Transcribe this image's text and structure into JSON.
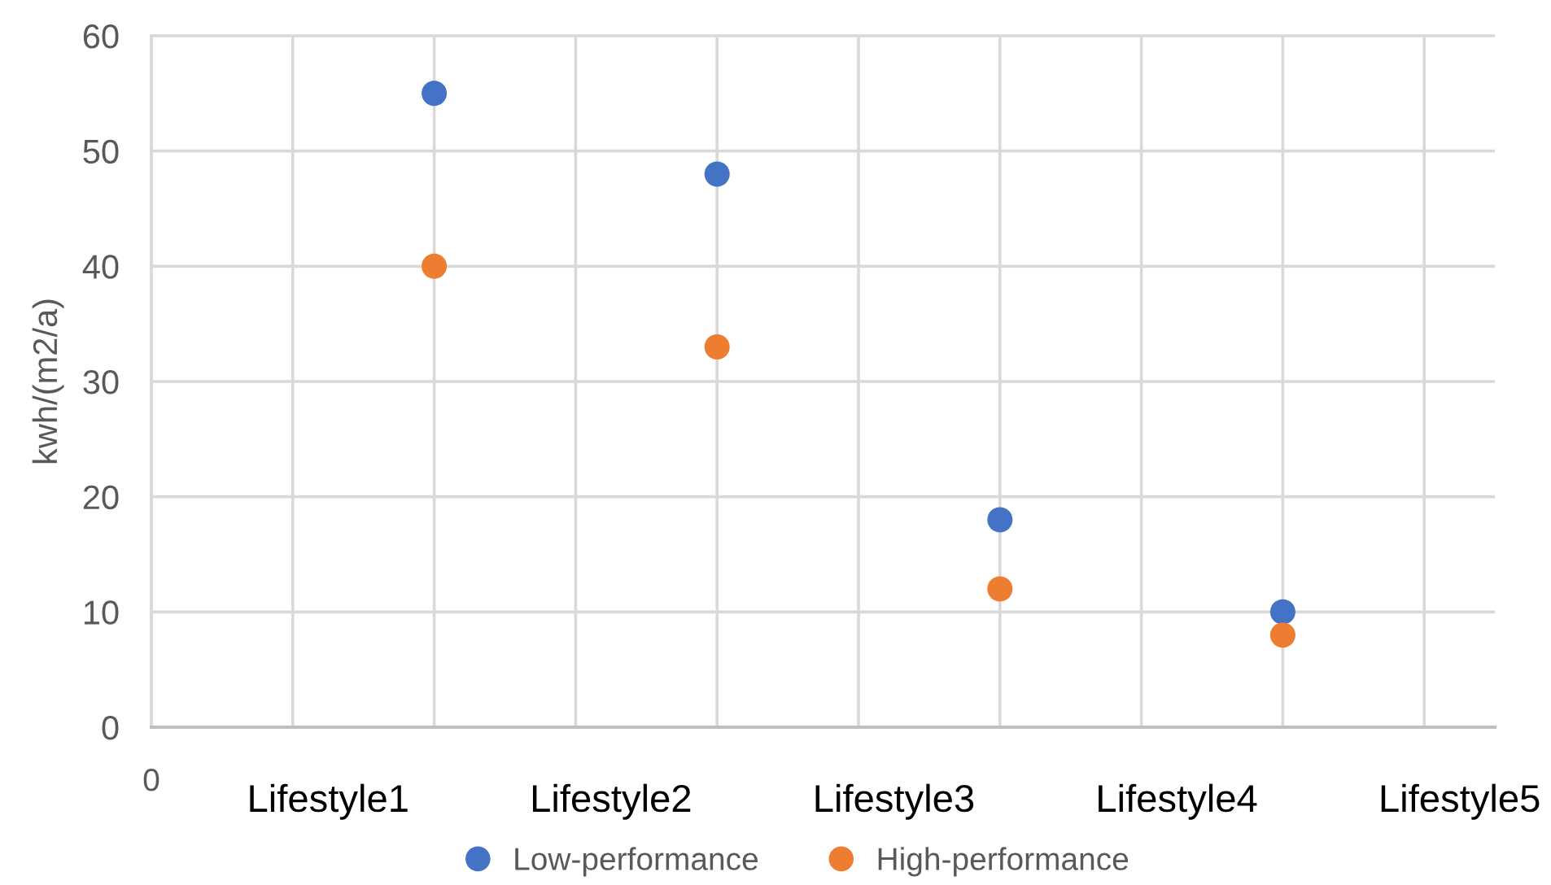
{
  "chart_data": {
    "type": "scatter",
    "ylabel": "kwh/(m2/a)",
    "categories": [
      "0",
      null,
      null,
      null,
      null,
      null,
      null,
      null,
      null,
      null
    ],
    "series": [
      {
        "name": "Low-performance",
        "color": "#4472c4",
        "values": [
          null,
          null,
          55,
          null,
          48,
          null,
          18,
          null,
          10,
          null
        ]
      },
      {
        "name": "High-performance",
        "color": "#ed7d31",
        "values": [
          null,
          null,
          40,
          null,
          33,
          null,
          12,
          null,
          8,
          null
        ]
      }
    ],
    "annotations": [
      "Lifestyle1",
      "Lifestyle2",
      "Lifestyle3",
      "Lifestyle4",
      "Lifestyle5"
    ],
    "ylim": [
      0,
      60
    ],
    "yticks": [
      0,
      10,
      20,
      30,
      40,
      50,
      60
    ],
    "grid": true,
    "legend": "bottom",
    "marker": "circle"
  }
}
